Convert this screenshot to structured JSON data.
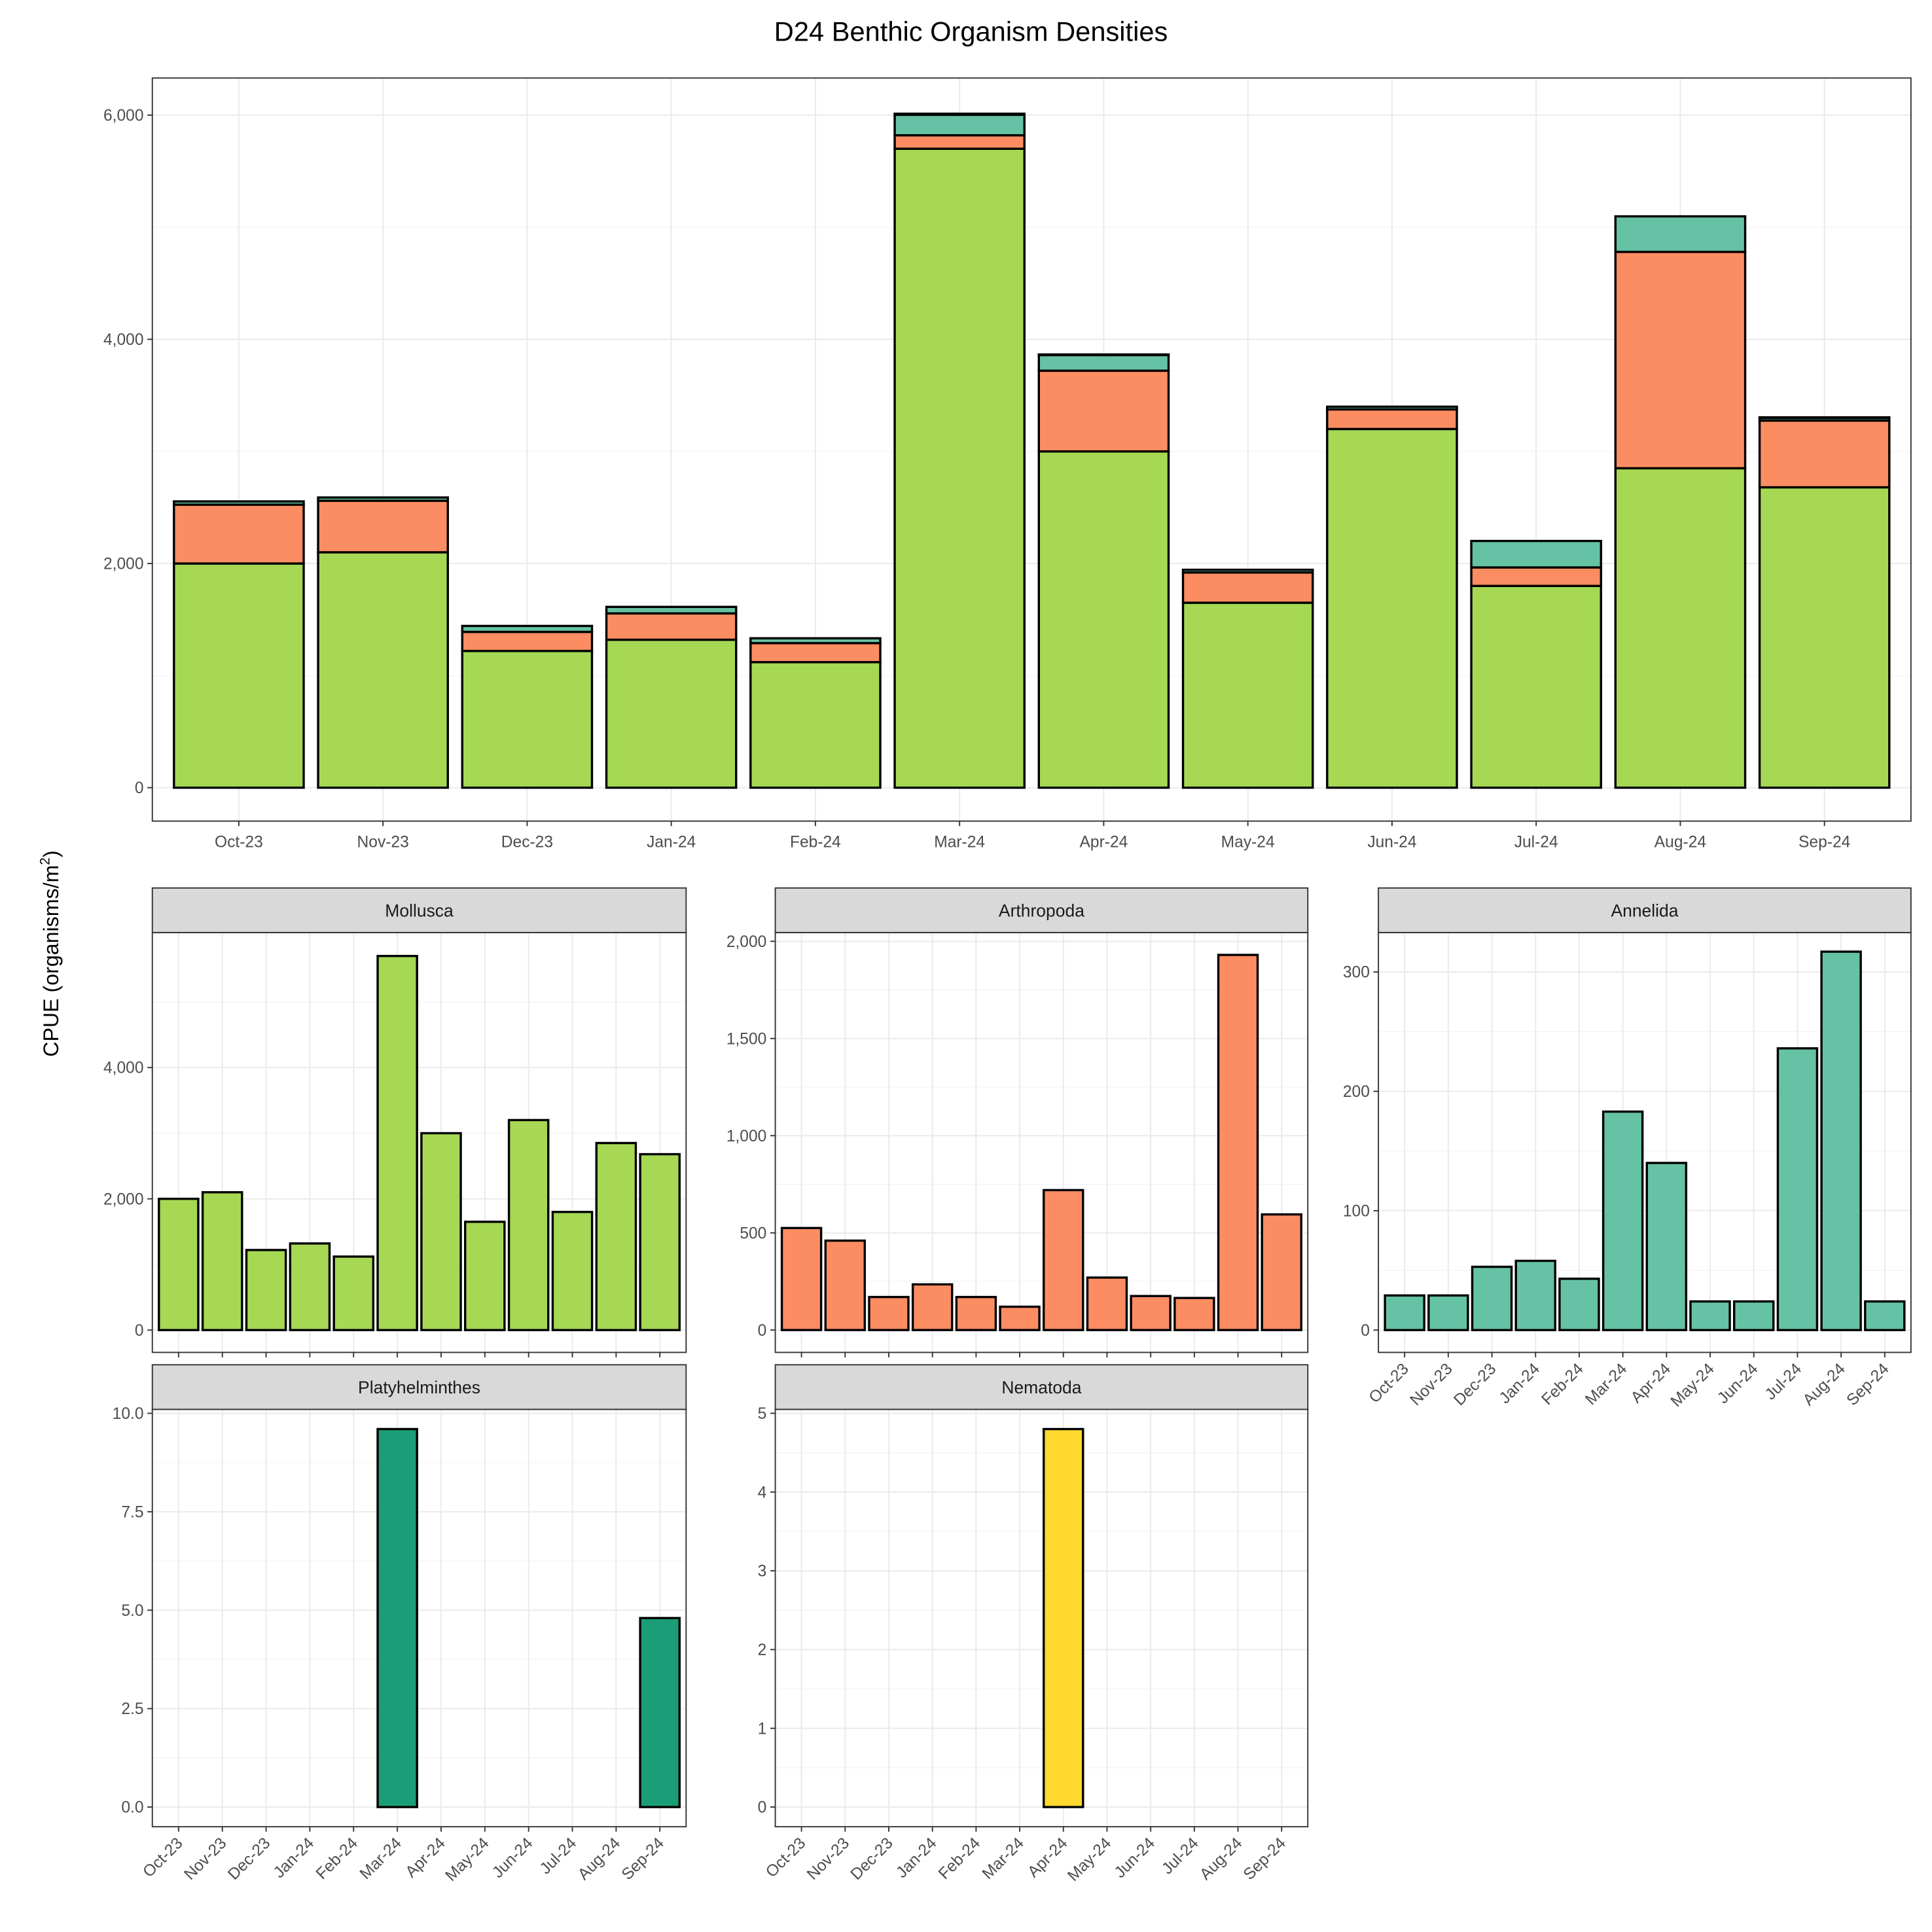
{
  "chart_data": {
    "type": "bar",
    "title": "D24 Benthic Organism Densities",
    "ylabel": "CPUE (organisms/m2)",
    "ylabel_main": "CPUE (organisms/m",
    "ylabel_sup": "2",
    "ylabel_close": ")",
    "xlabel": "",
    "categories": [
      "Oct-23",
      "Nov-23",
      "Dec-23",
      "Jan-24",
      "Feb-24",
      "Mar-24",
      "Apr-24",
      "May-24",
      "Jun-24",
      "Jul-24",
      "Aug-24",
      "Sep-24"
    ],
    "series": [
      {
        "name": "Mollusca",
        "color": "#a6d854",
        "values": [
          2000,
          2100,
          1220,
          1320,
          1120,
          5700,
          3000,
          1650,
          3200,
          1800,
          2850,
          2680
        ]
      },
      {
        "name": "Arthropoda",
        "color": "#fc8d62",
        "values": [
          525,
          460,
          170,
          235,
          170,
          120,
          720,
          270,
          175,
          165,
          1930,
          595
        ]
      },
      {
        "name": "Annelida",
        "color": "#66c2a5",
        "values": [
          29,
          29,
          53,
          58,
          43,
          183,
          140,
          24,
          24,
          236,
          317,
          24
        ]
      },
      {
        "name": "Platyhelminthes",
        "color": "#1b9e77",
        "values": [
          0,
          0,
          0,
          0,
          0,
          9.6,
          0,
          0,
          0,
          0,
          0,
          4.8
        ]
      },
      {
        "name": "Nematoda",
        "color": "#ffd92f",
        "values": [
          0,
          0,
          0,
          0,
          0,
          0,
          4.8,
          0,
          0,
          0,
          0,
          0
        ]
      }
    ],
    "stacked_panel": {
      "ylim": [
        -298,
        6331
      ],
      "ticks": [
        0,
        2000,
        4000,
        6000
      ],
      "tick_labels": [
        "0",
        "2,000",
        "4,000",
        "6,000"
      ]
    },
    "facets": [
      {
        "series": "Mollusca",
        "ylim": [
          -340,
          6057
        ],
        "ticks": [
          0,
          2000,
          4000
        ],
        "tick_labels": [
          "0",
          "2,000",
          "4,000"
        ],
        "show_x_labels": false
      },
      {
        "series": "Arthropoda",
        "ylim": [
          -115,
          2045
        ],
        "ticks": [
          0,
          500,
          1000,
          1500,
          2000
        ],
        "tick_labels": [
          "0",
          "500",
          "1,000",
          "1,500",
          "2,000"
        ],
        "show_x_labels": false
      },
      {
        "series": "Annelida",
        "ylim": [
          -18.7,
          333
        ],
        "ticks": [
          0,
          100,
          200,
          300
        ],
        "tick_labels": [
          "0",
          "100",
          "200",
          "300"
        ],
        "show_x_labels": true
      },
      {
        "series": "Platyhelminthes",
        "ylim": [
          -0.5,
          10.1
        ],
        "ticks": [
          0,
          2.5,
          5,
          7.5,
          10
        ],
        "tick_labels": [
          "0.0",
          "2.5",
          "5.0",
          "7.5",
          "10.0"
        ],
        "show_x_labels": true
      },
      {
        "series": "Nematoda",
        "ylim": [
          -0.25,
          5.05
        ],
        "ticks": [
          0,
          1,
          2,
          3,
          4,
          5
        ],
        "tick_labels": [
          "0",
          "1",
          "2",
          "3",
          "4",
          "5"
        ],
        "show_x_labels": true
      }
    ],
    "grid": true,
    "legend": "none"
  }
}
